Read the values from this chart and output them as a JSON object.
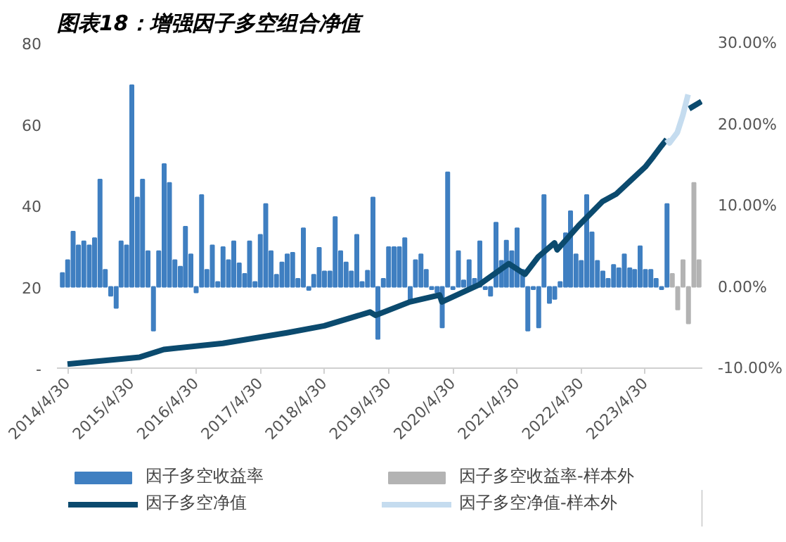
{
  "chart_data": {
    "type": "bar",
    "title": "图表18：增强因子多空组合净值",
    "ylim": [
      0,
      80
    ],
    "yticks": [
      {
        "value": 0,
        "label": "-"
      },
      20,
      40,
      60,
      80
    ],
    "y2lim": [
      -10,
      30
    ],
    "y2ticks": [
      {
        "value": -10,
        "label": "-10.00%"
      },
      {
        "value": 0,
        "label": "0.00%"
      },
      {
        "value": 10,
        "label": "10.00%"
      },
      {
        "value": 20,
        "label": "20.00%"
      },
      {
        "value": 30,
        "label": "30.00%"
      }
    ],
    "xlim": [
      "2014-03-01",
      "2024-03-20"
    ],
    "xticks": [
      {
        "value": "2014-04-30",
        "label": "2014/4/30"
      },
      {
        "value": "2015-04-30",
        "label": "2015/4/30"
      },
      {
        "value": "2016-04-30",
        "label": "2016/4/30"
      },
      {
        "value": "2017-04-30",
        "label": "2017/4/30"
      },
      {
        "value": "2018-04-30",
        "label": "2018/4/30"
      },
      {
        "value": "2019-04-30",
        "label": "2019/4/30"
      },
      {
        "value": "2020-04-30",
        "label": "2020/4/30"
      },
      {
        "value": "2021-04-30",
        "label": "2021/4/30"
      },
      {
        "value": "2022-04-30",
        "label": "2022/4/30"
      },
      {
        "value": "2023-04-30",
        "label": "2023/4/30"
      }
    ],
    "grid": false,
    "legend": "bottom",
    "series": [
      {
        "name": "因子多空收益率",
        "axis": "y2",
        "color": "#3f7fc1",
        "x": [
          "2014-04",
          "2014-05",
          "2014-06",
          "2014-07",
          "2014-08",
          "2014-09",
          "2014-10",
          "2014-11",
          "2014-12",
          "2015-01",
          "2015-02",
          "2015-03",
          "2015-04",
          "2015-05",
          "2015-06",
          "2015-07",
          "2015-08",
          "2015-09",
          "2015-10",
          "2015-11",
          "2015-12",
          "2016-01",
          "2016-02",
          "2016-03",
          "2016-04",
          "2016-05",
          "2016-06",
          "2016-07",
          "2016-08",
          "2016-09",
          "2016-10",
          "2016-11",
          "2016-12",
          "2017-01",
          "2017-02",
          "2017-03",
          "2017-04",
          "2017-05",
          "2017-06",
          "2017-07",
          "2017-08",
          "2017-09",
          "2017-10",
          "2017-11",
          "2017-12",
          "2018-01",
          "2018-02",
          "2018-03",
          "2018-04",
          "2018-05",
          "2018-06",
          "2018-07",
          "2018-08",
          "2018-09",
          "2018-10",
          "2018-11",
          "2018-12",
          "2019-01",
          "2019-02",
          "2019-03",
          "2019-04",
          "2019-05",
          "2019-06",
          "2019-07",
          "2019-08",
          "2019-09",
          "2019-10",
          "2019-11",
          "2019-12",
          "2020-01",
          "2020-02",
          "2020-03",
          "2020-04",
          "2020-05",
          "2020-06",
          "2020-07",
          "2020-08",
          "2020-09",
          "2020-10",
          "2020-11",
          "2020-12",
          "2021-01",
          "2021-02",
          "2021-03",
          "2021-04",
          "2021-05",
          "2021-06",
          "2021-07",
          "2021-08",
          "2021-09",
          "2021-10",
          "2021-11",
          "2021-12",
          "2022-01",
          "2022-02",
          "2022-03",
          "2022-04",
          "2022-05",
          "2022-06",
          "2022-07",
          "2022-08",
          "2022-09",
          "2022-10",
          "2022-11",
          "2022-12",
          "2023-01",
          "2023-02",
          "2023-03",
          "2023-04",
          "2023-05",
          "2023-06",
          "2023-07",
          "2023-08",
          "2023-09"
        ],
        "values": [
          1.7,
          3.3,
          6.8,
          5.1,
          5.6,
          5.1,
          6.0,
          13.2,
          2.1,
          -1.1,
          -2.6,
          5.6,
          5.1,
          24.8,
          11.0,
          13.2,
          4.4,
          -5.4,
          4.4,
          15.1,
          12.8,
          3.3,
          2.5,
          7.4,
          4.0,
          -0.7,
          11.3,
          2.1,
          5.1,
          0.6,
          4.9,
          3.3,
          5.6,
          2.9,
          1.6,
          5.6,
          0.6,
          6.4,
          10.2,
          4.4,
          1.5,
          3.0,
          4.0,
          4.2,
          1.0,
          7.2,
          -0.4,
          1.5,
          4.8,
          1.9,
          1.9,
          8.6,
          4.4,
          3.0,
          1.9,
          6.4,
          0.6,
          2.0,
          11.0,
          -6.4,
          1.0,
          4.9,
          4.9,
          4.9,
          6.0,
          -2.0,
          3.3,
          4.0,
          2.1,
          -0.3,
          -0.7,
          -5.0,
          14.1,
          -0.3,
          4.4,
          0.8,
          3.3,
          1.0,
          5.6,
          -0.3,
          -1.1,
          7.9,
          3.2,
          5.7,
          4.4,
          7.2,
          2.1,
          -5.4,
          -0.3,
          -5.0,
          11.3,
          -2.0,
          -1.5,
          0.6,
          6.6,
          9.3,
          4.0,
          3.2,
          11.3,
          6.7,
          3.2,
          1.9,
          1.0,
          2.7,
          2.3,
          4.0,
          2.3,
          2.1,
          5.0,
          2.1,
          2.1,
          1.0,
          -0.3,
          10.2
        ]
      },
      {
        "name": "因子多空收益率-样本外",
        "axis": "y2",
        "color": "#b3b3b3",
        "x": [
          "2023-10",
          "2023-11",
          "2023-12",
          "2024-01",
          "2024-02",
          "2024-03"
        ],
        "values": [
          1.6,
          -2.8,
          3.3,
          -4.5,
          12.8,
          3.3
        ]
      },
      {
        "name": "因子多空净值",
        "type": "line",
        "color": "#0b4a6e",
        "x": [
          "2014-04-30",
          "2015-06-15",
          "2015-10-30",
          "2016-09-30",
          "2017-09-30",
          "2018-04-30",
          "2019-01-15",
          "2019-02-15",
          "2019-08-30",
          "2020-02-15",
          "2020-02-28",
          "2020-09-30",
          "2021-03-15",
          "2021-06-15",
          "2021-08-30",
          "2021-11-30",
          "2021-12-15",
          "2022-04-15",
          "2022-08-30",
          "2022-11-15",
          "2023-04-30",
          "2023-06-15",
          "2023-07-30",
          "2023-08-30",
          "2023-12-31",
          "2024-01-05",
          "2024-03-15"
        ],
        "values": [
          1.0,
          2.7,
          4.6,
          6.1,
          8.7,
          10.4,
          13.8,
          13.0,
          16.3,
          18.0,
          16.3,
          20.6,
          25.7,
          23.1,
          27.4,
          30.8,
          29.1,
          35.0,
          41.0,
          42.8,
          49.5,
          52.0,
          54.6,
          56.3,
          null,
          63.8,
          65.6
        ]
      },
      {
        "name": "因子多空净值-样本外",
        "type": "line",
        "color": "#c5dcef",
        "x": [
          "2023-08-30",
          "2023-09-15",
          "2023-10-30",
          "2023-11-30",
          "2023-12-30"
        ],
        "values": [
          56.3,
          55.4,
          58.0,
          62.2,
          67.3
        ]
      }
    ]
  }
}
